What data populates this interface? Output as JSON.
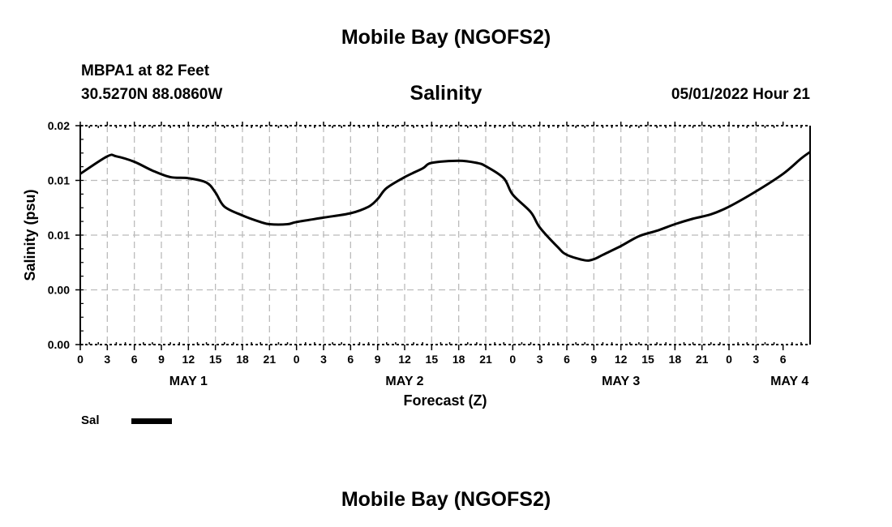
{
  "header": {
    "title": "Mobile Bay (NGOFS2)",
    "station": "MBPA1 at 82 Feet",
    "coords": "30.5270N  88.0860W",
    "variable": "Salinity",
    "datetime": "05/01/2022 Hour 21",
    "footer_title": "Mobile Bay (NGOFS2)"
  },
  "chart_data": {
    "type": "line",
    "title": "Salinity",
    "xlabel": "Forecast (Z)",
    "ylabel": "Salinity (psu)",
    "xlim": [
      0,
      81
    ],
    "ylim": [
      0,
      0.02
    ],
    "grid": true,
    "x_tick_labels": [
      "0",
      "3",
      "6",
      "9",
      "12",
      "15",
      "18",
      "21",
      "0",
      "3",
      "6",
      "9",
      "12",
      "15",
      "18",
      "21",
      "0",
      "3",
      "6",
      "9",
      "12",
      "15",
      "18",
      "21",
      "0",
      "3",
      "6"
    ],
    "day_labels": [
      {
        "label": "MAY 1",
        "hour": 12
      },
      {
        "label": "MAY 2",
        "hour": 36
      },
      {
        "label": "MAY 3",
        "hour": 60
      },
      {
        "label": "MAY 4",
        "hour": 78
      }
    ],
    "y_ticks": [
      {
        "value": 0,
        "label": "0.00"
      },
      {
        "value": 0.005,
        "label": "0.00"
      },
      {
        "value": 0.01,
        "label": "0.01"
      },
      {
        "value": 0.015,
        "label": "0.01"
      },
      {
        "value": 0.02,
        "label": "0.02"
      }
    ],
    "legend": {
      "placement": "bottom-left",
      "label": "Sal"
    },
    "series": [
      {
        "name": "Sal",
        "x": [
          0,
          3,
          4,
          6,
          8,
          10,
          12,
          14,
          15,
          16,
          18,
          20,
          21,
          23,
          24,
          27,
          30,
          32,
          33,
          34,
          36,
          38,
          39,
          42,
          44,
          45,
          47,
          48,
          50,
          51,
          53,
          54,
          56,
          57,
          58,
          60,
          62,
          64,
          66,
          68,
          70,
          72,
          75,
          78,
          80,
          81
        ],
        "y": [
          0.0156,
          0.0172,
          0.0172,
          0.0167,
          0.0159,
          0.0153,
          0.0152,
          0.0148,
          0.0139,
          0.0126,
          0.0118,
          0.0112,
          0.011,
          0.011,
          0.0112,
          0.0116,
          0.012,
          0.0126,
          0.0133,
          0.0143,
          0.0153,
          0.0161,
          0.0166,
          0.0168,
          0.0166,
          0.0163,
          0.0152,
          0.0137,
          0.0121,
          0.0107,
          0.0089,
          0.0082,
          0.0077,
          0.0078,
          0.0082,
          0.009,
          0.0099,
          0.0104,
          0.011,
          0.0115,
          0.0119,
          0.0126,
          0.014,
          0.0156,
          0.017,
          0.0176
        ]
      }
    ]
  }
}
